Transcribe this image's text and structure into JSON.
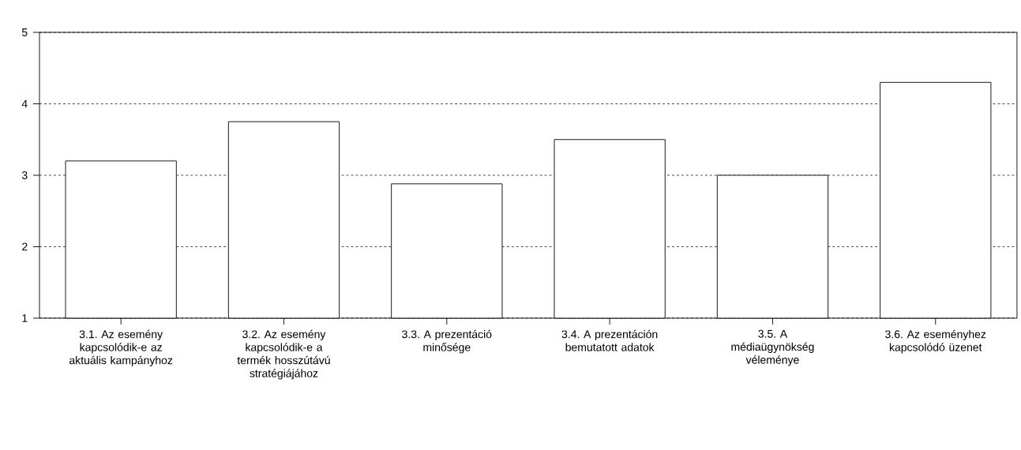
{
  "chart_data": {
    "type": "bar",
    "categories": [
      "3.1. Az esemény kapcsolódik-e az aktuális kampányhoz",
      "3.2. Az esemény kapcsolódik-e a termék hosszútávú stratégiájához",
      "3.3. A prezentáció minősége",
      "3.4. A prezentáción bemutatott adatok",
      "3.5. A médiaügynökség véleménye",
      "3.6. Az eseményhez kapcsolódó üzenet"
    ],
    "values": [
      3.2,
      3.75,
      2.88,
      3.5,
      3.0,
      4.3
    ],
    "color": "#ffffff",
    "ylim": [
      1,
      5
    ],
    "yticks": [
      1,
      2,
      3,
      4,
      5
    ],
    "grid": "y"
  }
}
